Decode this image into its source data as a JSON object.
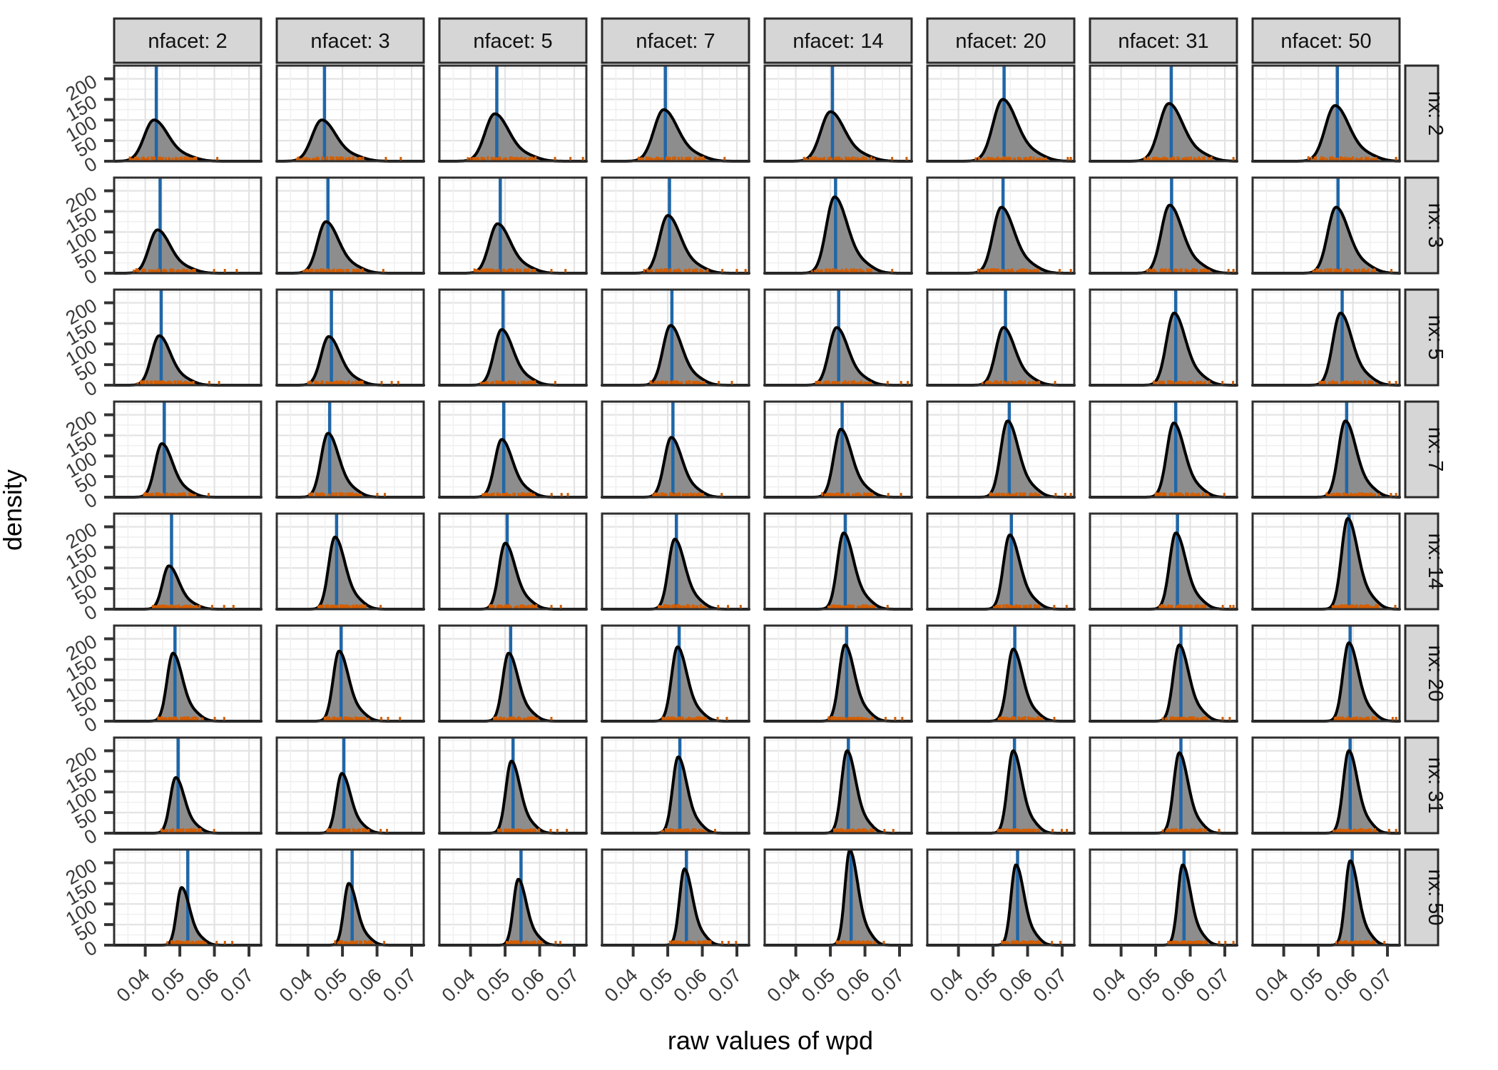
{
  "figure": {
    "y_axis_title": "density",
    "x_axis_title": "raw values of wpd"
  },
  "colors": {
    "strip_bg": "#d6d6d6",
    "strip_border": "#2a2a2a",
    "strip_text": "#111111",
    "panel_bg": "#ffffff",
    "panel_border": "#2f2f2f",
    "grid_major": "#e3e3e3",
    "grid_minor": "#f1f1f1",
    "density_fill": "#8d8d8d",
    "density_line": "#000000",
    "median_line": "#2066a8",
    "rug": "#d55e00",
    "tick_mark": "#333333",
    "tick_text": "#3a3a3a"
  },
  "chart_data": {
    "type": "density_grid",
    "description": "8x8 facet grid of density curves of wpd; columns = nfacet, rows = nx; blue vertical line = median of each distribution; orange rug marks = raw observations",
    "facet_col_variable": "nfacet",
    "facet_row_variable": "nx",
    "col_values": [
      2,
      3,
      5,
      7,
      14,
      20,
      31,
      50
    ],
    "row_values": [
      2,
      3,
      5,
      7,
      14,
      20,
      31,
      50
    ],
    "col_headers": [
      "nfacet: 2",
      "nfacet: 3",
      "nfacet: 5",
      "nfacet: 7",
      "nfacet: 14",
      "nfacet: 20",
      "nfacet: 31",
      "nfacet: 50"
    ],
    "row_headers": [
      "nx: 2",
      "nx: 3",
      "nx: 5",
      "nx: 7",
      "nx: 14",
      "nx: 20",
      "nx: 31",
      "nx: 50"
    ],
    "xlabel": "raw values of wpd",
    "ylabel": "density",
    "x_ticks": [
      0.04,
      0.05,
      0.06,
      0.07
    ],
    "x_tick_labels": [
      "0.04",
      "0.05",
      "0.06",
      "0.07"
    ],
    "x_minor_ticks": [
      0.035,
      0.045,
      0.055,
      0.065
    ],
    "y_ticks": [
      0,
      50,
      100,
      150,
      200
    ],
    "y_tick_labels": [
      "0",
      "50",
      "100",
      "150",
      "200"
    ],
    "y_minor_ticks": [
      25,
      75,
      125,
      175,
      225
    ],
    "x_range": [
      0.031,
      0.0735
    ],
    "y_range": [
      0,
      232
    ],
    "grid": true,
    "panel_format": [
      "mode_x",
      "peak_density",
      "median_x"
    ],
    "spreads_by_row": [
      [
        0.0028,
        0.0042
      ],
      [
        0.0024,
        0.0038
      ],
      [
        0.0022,
        0.0034
      ],
      [
        0.002,
        0.0032
      ],
      [
        0.0018,
        0.003
      ],
      [
        0.0017,
        0.0028
      ],
      [
        0.0016,
        0.0026
      ],
      [
        0.0014,
        0.0024
      ]
    ],
    "panels": [
      [
        [
          0.0425,
          100,
          0.0432
        ],
        [
          0.044,
          100,
          0.0448
        ],
        [
          0.047,
          115,
          0.0476
        ],
        [
          0.0488,
          125,
          0.0493
        ],
        [
          0.05,
          120,
          0.0506
        ],
        [
          0.0528,
          150,
          0.0532
        ],
        [
          0.0538,
          140,
          0.0545
        ],
        [
          0.0548,
          135,
          0.0555
        ]
      ],
      [
        [
          0.0435,
          105,
          0.0443
        ],
        [
          0.0452,
          125,
          0.0458
        ],
        [
          0.0478,
          120,
          0.0486
        ],
        [
          0.05,
          140,
          0.0505
        ],
        [
          0.0512,
          185,
          0.0515
        ],
        [
          0.0524,
          160,
          0.0529
        ],
        [
          0.054,
          165,
          0.0546
        ],
        [
          0.0551,
          160,
          0.0557
        ]
      ],
      [
        [
          0.044,
          120,
          0.0446
        ],
        [
          0.046,
          118,
          0.0468
        ],
        [
          0.049,
          135,
          0.0494
        ],
        [
          0.0508,
          145,
          0.0512
        ],
        [
          0.0518,
          140,
          0.0524
        ],
        [
          0.053,
          140,
          0.0536
        ],
        [
          0.0553,
          175,
          0.0558
        ],
        [
          0.0564,
          175,
          0.0569
        ]
      ],
      [
        [
          0.0448,
          130,
          0.0455
        ],
        [
          0.0458,
          155,
          0.0463
        ],
        [
          0.049,
          140,
          0.0496
        ],
        [
          0.051,
          145,
          0.0515
        ],
        [
          0.053,
          165,
          0.0534
        ],
        [
          0.0542,
          185,
          0.0547
        ],
        [
          0.0552,
          180,
          0.0558
        ],
        [
          0.0578,
          185,
          0.0582
        ]
      ],
      [
        [
          0.0468,
          105,
          0.0476
        ],
        [
          0.0478,
          175,
          0.0483
        ],
        [
          0.05,
          160,
          0.0506
        ],
        [
          0.052,
          170,
          0.0525
        ],
        [
          0.0538,
          185,
          0.0543
        ],
        [
          0.0548,
          180,
          0.0553
        ],
        [
          0.0558,
          185,
          0.0563
        ],
        [
          0.0585,
          220,
          0.0589
        ]
      ],
      [
        [
          0.048,
          165,
          0.0486
        ],
        [
          0.049,
          170,
          0.0496
        ],
        [
          0.051,
          165,
          0.0516
        ],
        [
          0.0528,
          180,
          0.0533
        ],
        [
          0.0542,
          185,
          0.0547
        ],
        [
          0.0558,
          175,
          0.0563
        ],
        [
          0.0568,
          185,
          0.0573
        ],
        [
          0.0588,
          190,
          0.0592
        ]
      ],
      [
        [
          0.0488,
          135,
          0.0495
        ],
        [
          0.0498,
          145,
          0.0504
        ],
        [
          0.0518,
          175,
          0.0523
        ],
        [
          0.053,
          185,
          0.0535
        ],
        [
          0.0548,
          200,
          0.0552
        ],
        [
          0.0558,
          200,
          0.0562
        ],
        [
          0.0568,
          195,
          0.0573
        ],
        [
          0.0588,
          200,
          0.0592
        ]
      ],
      [
        [
          0.0505,
          140,
          0.0523
        ],
        [
          0.0518,
          150,
          0.0528
        ],
        [
          0.0538,
          160,
          0.0546
        ],
        [
          0.0548,
          185,
          0.0554
        ],
        [
          0.0556,
          230,
          0.056
        ],
        [
          0.0566,
          195,
          0.0571
        ],
        [
          0.0578,
          195,
          0.0582
        ],
        [
          0.0592,
          205,
          0.0598
        ]
      ]
    ]
  }
}
